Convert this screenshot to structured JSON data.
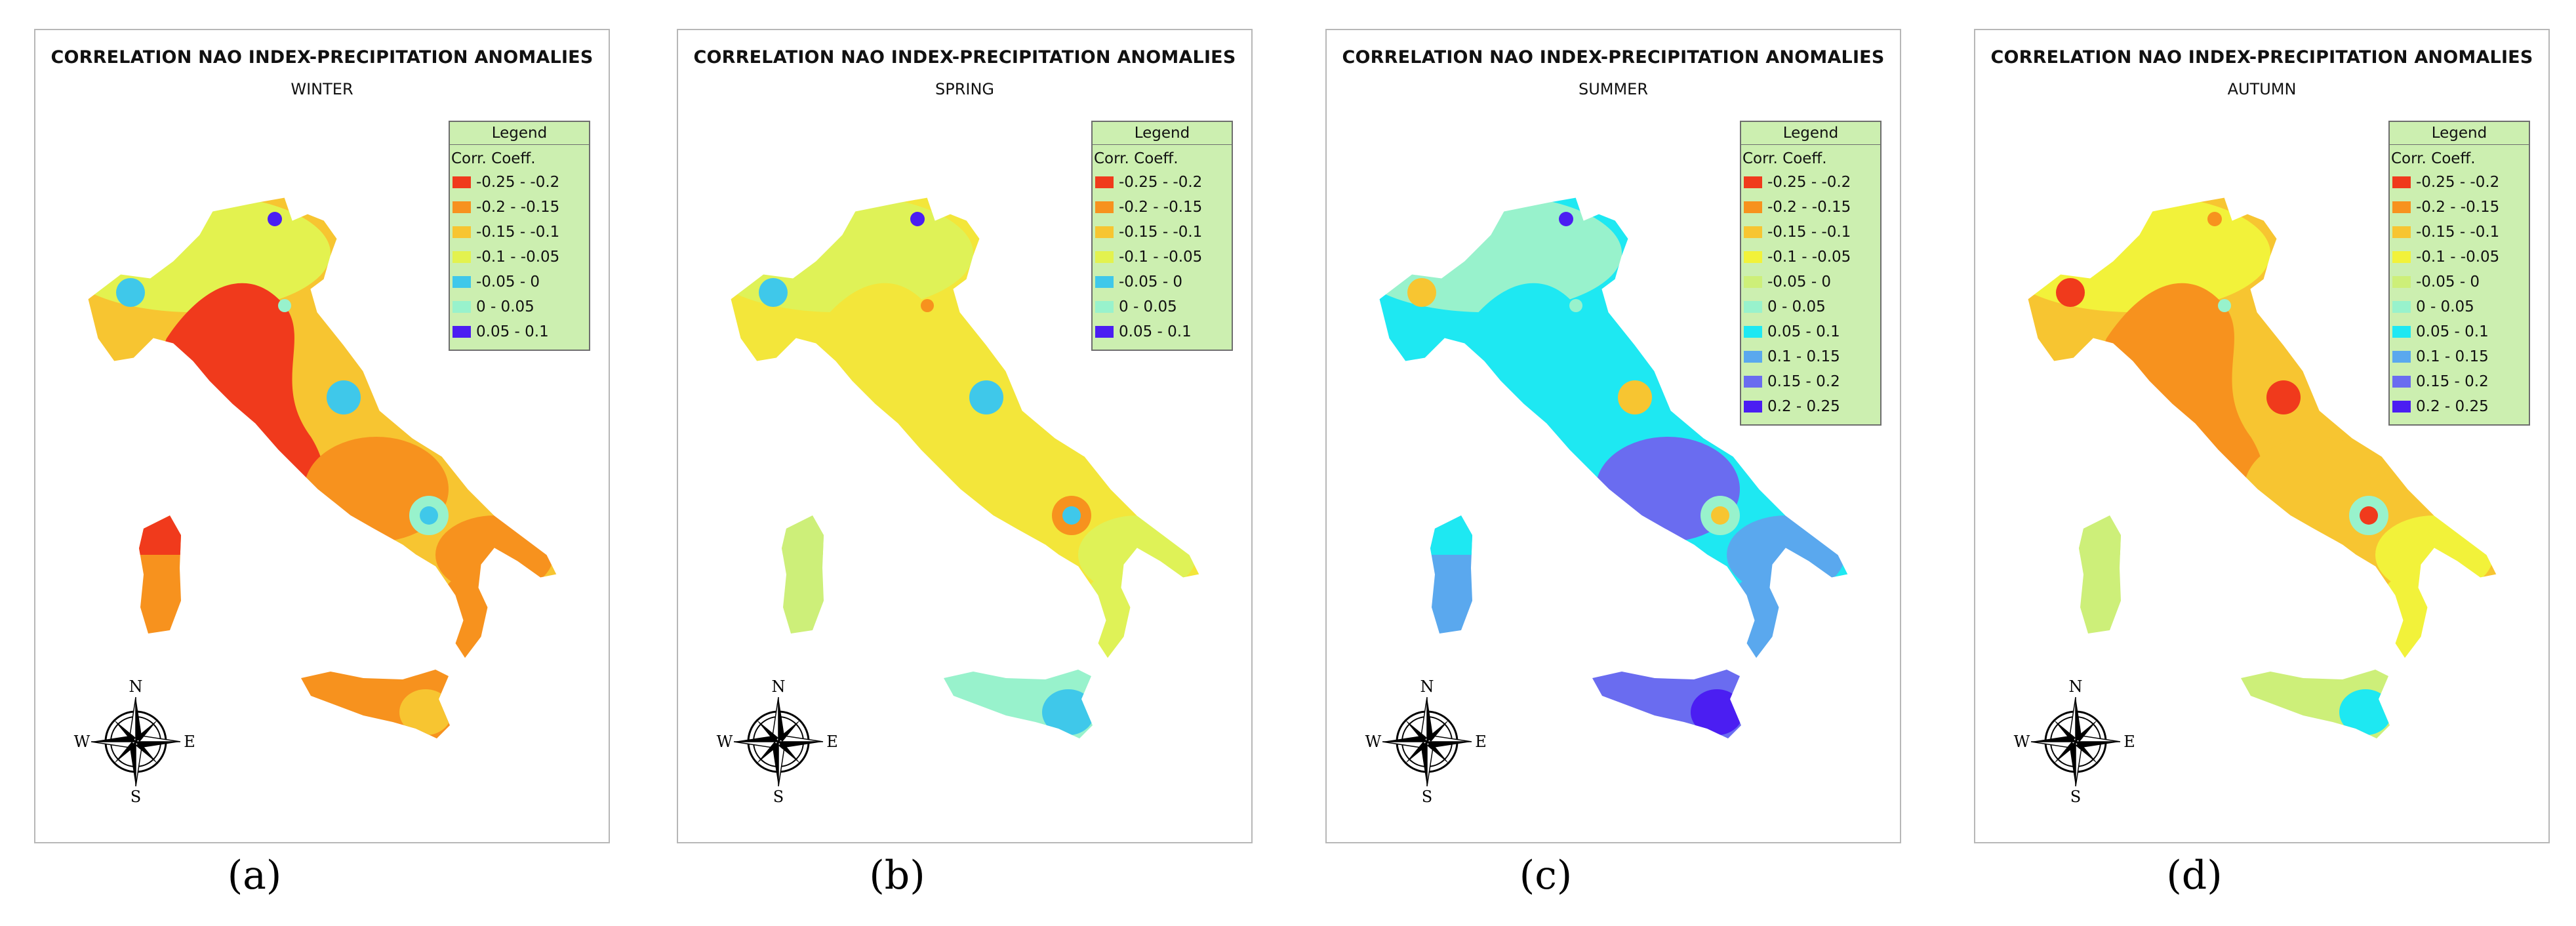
{
  "panels": [
    {
      "title": "CORRELATION NAO INDEX-PRECIPITATION ANOMALIES",
      "season": "WINTER",
      "caption": "(a)",
      "legend_header": "Legend",
      "legend_title": "Corr. Coeff.",
      "legend_items": [
        {
          "label": "-0.25 - -0.2",
          "color": "#f03a1c"
        },
        {
          "label": "-0.2 - -0.15",
          "color": "#f7921e"
        },
        {
          "label": "-0.15 - -0.1",
          "color": "#f7c531"
        },
        {
          "label": "-0.1 - -0.05",
          "color": "#e3f24f"
        },
        {
          "label": "-0.05 - 0",
          "color": "#3fc8ea"
        },
        {
          "label": "0 - 0.05",
          "color": "#98f2cc"
        },
        {
          "label": "0.05 - 0.1",
          "color": "#4b1ef2"
        }
      ],
      "compass": {
        "n": "N",
        "s": "S",
        "e": "E",
        "w": "W"
      },
      "palette": {
        "bg": "#f7c531",
        "north": "#e3f24f",
        "main": "#f03a1c",
        "mid": "#f7921e",
        "south": "#f7921e",
        "sardinia": "#f7921e",
        "sardinia_n": "#f03a1c",
        "sicily": "#f7921e",
        "sicily_e": "#f7c531",
        "spots": "#3fc8ea",
        "spot2": "#98f2cc",
        "dot": "#4b1ef2"
      }
    },
    {
      "title": "CORRELATION NAO INDEX-PRECIPITATION ANOMALIES",
      "season": "SPRING",
      "caption": "(b)",
      "legend_header": "Legend",
      "legend_title": "Corr. Coeff.",
      "legend_items": [
        {
          "label": "-0.25 - -0.2",
          "color": "#f03a1c"
        },
        {
          "label": "-0.2 - -0.15",
          "color": "#f7921e"
        },
        {
          "label": "-0.15 - -0.1",
          "color": "#f7c531"
        },
        {
          "label": "-0.1 - -0.05",
          "color": "#e3f24f"
        },
        {
          "label": "-0.05 - 0",
          "color": "#3fc8ea"
        },
        {
          "label": "0 - 0.05",
          "color": "#98f2cc"
        },
        {
          "label": "0.05 - 0.1",
          "color": "#4b1ef2"
        }
      ],
      "compass": {
        "n": "N",
        "s": "S",
        "e": "E",
        "w": "W"
      },
      "palette": {
        "bg": "#f3e63a",
        "north": "#dff257",
        "main": "#f3e63a",
        "mid": "#f3e63a",
        "south": "#dff257",
        "sardinia": "#cdef79",
        "sardinia_n": "#cdef79",
        "sicily": "#98f2cc",
        "sicily_e": "#3fc8ea",
        "spots": "#3fc8ea",
        "spot2": "#f7921e",
        "dot": "#4b1ef2"
      }
    },
    {
      "title": "CORRELATION NAO INDEX-PRECIPITATION ANOMALIES",
      "season": "SUMMER",
      "caption": "(c)",
      "legend_header": "Legend",
      "legend_title": "Corr. Coeff.",
      "legend_items": [
        {
          "label": "-0.25 - -0.2",
          "color": "#f03a1c"
        },
        {
          "label": "-0.2 - -0.15",
          "color": "#f7921e"
        },
        {
          "label": "-0.15 - -0.1",
          "color": "#f7c531"
        },
        {
          "label": "-0.1 - -0.05",
          "color": "#f2f23a"
        },
        {
          "label": "-0.05 - 0",
          "color": "#cdef79"
        },
        {
          "label": "0 - 0.05",
          "color": "#98f2cc"
        },
        {
          "label": "0.05 - 0.1",
          "color": "#1ee8f2"
        },
        {
          "label": "0.1 - 0.15",
          "color": "#5aa8ee"
        },
        {
          "label": "0.15 - 0.2",
          "color": "#6a6cf0"
        },
        {
          "label": "0.2 - 0.25",
          "color": "#4b1ef2"
        }
      ],
      "compass": {
        "n": "N",
        "s": "S",
        "e": "E",
        "w": "W"
      },
      "palette": {
        "bg": "#1ee8f2",
        "north": "#98f2cc",
        "main": "#1ee8f2",
        "mid": "#6a6cf0",
        "south": "#5aa8ee",
        "sardinia": "#5aa8ee",
        "sardinia_n": "#1ee8f2",
        "sicily": "#6a6cf0",
        "sicily_e": "#4b1ef2",
        "spots": "#f7c531",
        "spot2": "#98f2cc",
        "dot": "#4b1ef2"
      }
    },
    {
      "title": "CORRELATION NAO INDEX-PRECIPITATION ANOMALIES",
      "season": "AUTUMN",
      "caption": "(d)",
      "legend_header": "Legend",
      "legend_title": "Corr. Coeff.",
      "legend_items": [
        {
          "label": "-0.25 - -0.2",
          "color": "#f03a1c"
        },
        {
          "label": "-0.2 - -0.15",
          "color": "#f7921e"
        },
        {
          "label": "-0.15 - -0.1",
          "color": "#f7c531"
        },
        {
          "label": "-0.1 - -0.05",
          "color": "#f2f23a"
        },
        {
          "label": "-0.05 - 0",
          "color": "#cdef79"
        },
        {
          "label": "0 - 0.05",
          "color": "#98f2cc"
        },
        {
          "label": "0.05 - 0.1",
          "color": "#1ee8f2"
        },
        {
          "label": "0.1 - 0.15",
          "color": "#5aa8ee"
        },
        {
          "label": "0.15 - 0.2",
          "color": "#6a6cf0"
        },
        {
          "label": "0.2 - 0.25",
          "color": "#4b1ef2"
        }
      ],
      "compass": {
        "n": "N",
        "s": "S",
        "e": "E",
        "w": "W"
      },
      "palette": {
        "bg": "#f7c531",
        "north": "#f2f23a",
        "main": "#f7921e",
        "mid": "#f7c531",
        "south": "#f2f23a",
        "sardinia": "#cdef79",
        "sardinia_n": "#cdef79",
        "sicily": "#cdef79",
        "sicily_e": "#1ee8f2",
        "spots": "#f03a1c",
        "spot2": "#98f2cc",
        "dot": "#f7921e"
      }
    }
  ]
}
